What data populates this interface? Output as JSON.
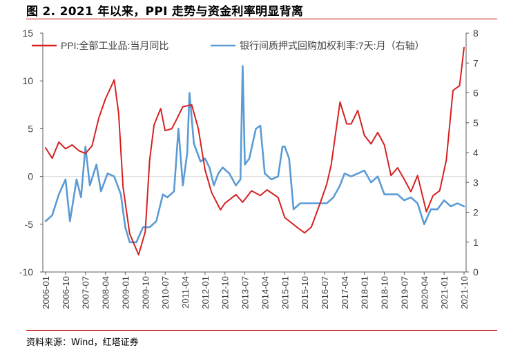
{
  "title": "图 2. 2021 年以来，PPI 走势与资金利率明显背离",
  "source": "资料来源：Wind，红塔证券",
  "colors": {
    "ppi": "#d62020",
    "repo": "#5b9bd5",
    "accent": "#c00000",
    "axis": "#595959",
    "zero": "#d9d9d9"
  },
  "chart_data": {
    "type": "line",
    "legend_placement": "top",
    "grid": false,
    "x_ticks": [
      "2006-01",
      "2006-10",
      "2007-07",
      "2008-04",
      "2009-01",
      "2009-10",
      "2010-07",
      "2011-04",
      "2012-01",
      "2012-10",
      "2013-07",
      "2014-04",
      "2015-01",
      "2015-10",
      "2016-07",
      "2017-04",
      "2018-01",
      "2018-10",
      "2019-07",
      "2020-04",
      "2021-01",
      "2021-10"
    ],
    "y_left": {
      "range": [
        -10,
        15
      ],
      "ticks": [
        -10,
        -5,
        0,
        5,
        10,
        15
      ]
    },
    "y_right": {
      "range": [
        0,
        8
      ],
      "ticks": [
        0,
        1,
        2,
        3,
        4,
        5,
        6,
        7,
        8
      ]
    },
    "series": [
      {
        "name": "PPI:全部工业品:当月同比",
        "axis": "left",
        "points": [
          [
            "2006-01",
            3.0
          ],
          [
            "2006-04",
            1.9
          ],
          [
            "2006-07",
            3.6
          ],
          [
            "2006-10",
            2.9
          ],
          [
            "2007-01",
            3.3
          ],
          [
            "2007-04",
            2.7
          ],
          [
            "2007-07",
            2.4
          ],
          [
            "2007-10",
            3.2
          ],
          [
            "2008-01",
            6.1
          ],
          [
            "2008-04",
            8.1
          ],
          [
            "2008-08",
            10.1
          ],
          [
            "2008-10",
            6.6
          ],
          [
            "2008-12",
            -1.1
          ],
          [
            "2009-03",
            -6.0
          ],
          [
            "2009-07",
            -8.2
          ],
          [
            "2009-10",
            -5.8
          ],
          [
            "2009-12",
            1.7
          ],
          [
            "2010-02",
            5.4
          ],
          [
            "2010-05",
            7.1
          ],
          [
            "2010-07",
            4.8
          ],
          [
            "2010-10",
            5.0
          ],
          [
            "2010-12",
            5.9
          ],
          [
            "2011-03",
            7.3
          ],
          [
            "2011-07",
            7.5
          ],
          [
            "2011-10",
            5.0
          ],
          [
            "2012-01",
            0.7
          ],
          [
            "2012-04",
            -1.7
          ],
          [
            "2012-08",
            -3.5
          ],
          [
            "2012-10",
            -2.8
          ],
          [
            "2013-03",
            -1.9
          ],
          [
            "2013-06",
            -2.7
          ],
          [
            "2013-10",
            -1.5
          ],
          [
            "2014-02",
            -2.0
          ],
          [
            "2014-05",
            -1.4
          ],
          [
            "2014-10",
            -2.2
          ],
          [
            "2015-01",
            -4.3
          ],
          [
            "2015-07",
            -5.4
          ],
          [
            "2015-10",
            -5.9
          ],
          [
            "2016-01",
            -5.3
          ],
          [
            "2016-05",
            -2.8
          ],
          [
            "2016-08",
            -0.8
          ],
          [
            "2016-10",
            1.2
          ],
          [
            "2017-02",
            7.8
          ],
          [
            "2017-05",
            5.5
          ],
          [
            "2017-07",
            5.5
          ],
          [
            "2017-10",
            6.9
          ],
          [
            "2018-01",
            4.3
          ],
          [
            "2018-04",
            3.4
          ],
          [
            "2018-07",
            4.6
          ],
          [
            "2018-10",
            3.3
          ],
          [
            "2019-01",
            0.1
          ],
          [
            "2019-04",
            0.9
          ],
          [
            "2019-07",
            -0.3
          ],
          [
            "2019-10",
            -1.6
          ],
          [
            "2020-01",
            0.1
          ],
          [
            "2020-05",
            -3.7
          ],
          [
            "2020-08",
            -2.0
          ],
          [
            "2020-11",
            -1.5
          ],
          [
            "2021-02",
            1.7
          ],
          [
            "2021-05",
            9.0
          ],
          [
            "2021-08",
            9.5
          ],
          [
            "2021-10",
            13.5
          ]
        ]
      },
      {
        "name": "银行间质押式回购加权利率:7天:月（右轴）",
        "axis": "right",
        "points": [
          [
            "2006-01",
            1.7
          ],
          [
            "2006-04",
            1.9
          ],
          [
            "2006-07",
            2.6
          ],
          [
            "2006-10",
            3.1
          ],
          [
            "2006-12",
            1.7
          ],
          [
            "2007-03",
            3.1
          ],
          [
            "2007-05",
            2.5
          ],
          [
            "2007-07",
            4.2
          ],
          [
            "2007-09",
            2.9
          ],
          [
            "2007-12",
            3.6
          ],
          [
            "2008-02",
            2.7
          ],
          [
            "2008-05",
            3.3
          ],
          [
            "2008-08",
            3.2
          ],
          [
            "2008-11",
            2.6
          ],
          [
            "2009-01",
            1.5
          ],
          [
            "2009-03",
            1.0
          ],
          [
            "2009-06",
            1.0
          ],
          [
            "2009-09",
            1.5
          ],
          [
            "2009-12",
            1.5
          ],
          [
            "2010-03",
            1.7
          ],
          [
            "2010-06",
            2.6
          ],
          [
            "2010-08",
            2.5
          ],
          [
            "2010-11",
            2.7
          ],
          [
            "2011-01",
            4.8
          ],
          [
            "2011-03",
            2.9
          ],
          [
            "2011-05",
            4.0
          ],
          [
            "2011-06",
            6.0
          ],
          [
            "2011-08",
            4.3
          ],
          [
            "2011-11",
            3.7
          ],
          [
            "2012-01",
            3.8
          ],
          [
            "2012-03",
            3.5
          ],
          [
            "2012-05",
            2.9
          ],
          [
            "2012-07",
            3.3
          ],
          [
            "2012-09",
            3.5
          ],
          [
            "2012-12",
            3.3
          ],
          [
            "2013-03",
            2.9
          ],
          [
            "2013-05",
            3.1
          ],
          [
            "2013-06",
            6.9
          ],
          [
            "2013-07",
            3.6
          ],
          [
            "2013-09",
            3.8
          ],
          [
            "2013-12",
            4.8
          ],
          [
            "2014-02",
            4.9
          ],
          [
            "2014-04",
            3.3
          ],
          [
            "2014-07",
            3.1
          ],
          [
            "2014-10",
            3.2
          ],
          [
            "2014-12",
            4.2
          ],
          [
            "2015-01",
            4.2
          ],
          [
            "2015-03",
            3.8
          ],
          [
            "2015-05",
            2.1
          ],
          [
            "2015-08",
            2.3
          ],
          [
            "2015-11",
            2.3
          ],
          [
            "2016-02",
            2.3
          ],
          [
            "2016-05",
            2.3
          ],
          [
            "2016-08",
            2.3
          ],
          [
            "2016-11",
            2.5
          ],
          [
            "2017-02",
            2.9
          ],
          [
            "2017-04",
            3.3
          ],
          [
            "2017-07",
            3.2
          ],
          [
            "2017-10",
            3.3
          ],
          [
            "2018-01",
            3.4
          ],
          [
            "2018-04",
            3.0
          ],
          [
            "2018-07",
            3.2
          ],
          [
            "2018-10",
            2.6
          ],
          [
            "2019-01",
            2.6
          ],
          [
            "2019-04",
            2.6
          ],
          [
            "2019-07",
            2.4
          ],
          [
            "2019-10",
            2.5
          ],
          [
            "2020-01",
            2.3
          ],
          [
            "2020-04",
            1.6
          ],
          [
            "2020-07",
            2.1
          ],
          [
            "2020-10",
            2.1
          ],
          [
            "2021-01",
            2.4
          ],
          [
            "2021-04",
            2.2
          ],
          [
            "2021-07",
            2.3
          ],
          [
            "2021-10",
            2.2
          ]
        ]
      }
    ]
  }
}
